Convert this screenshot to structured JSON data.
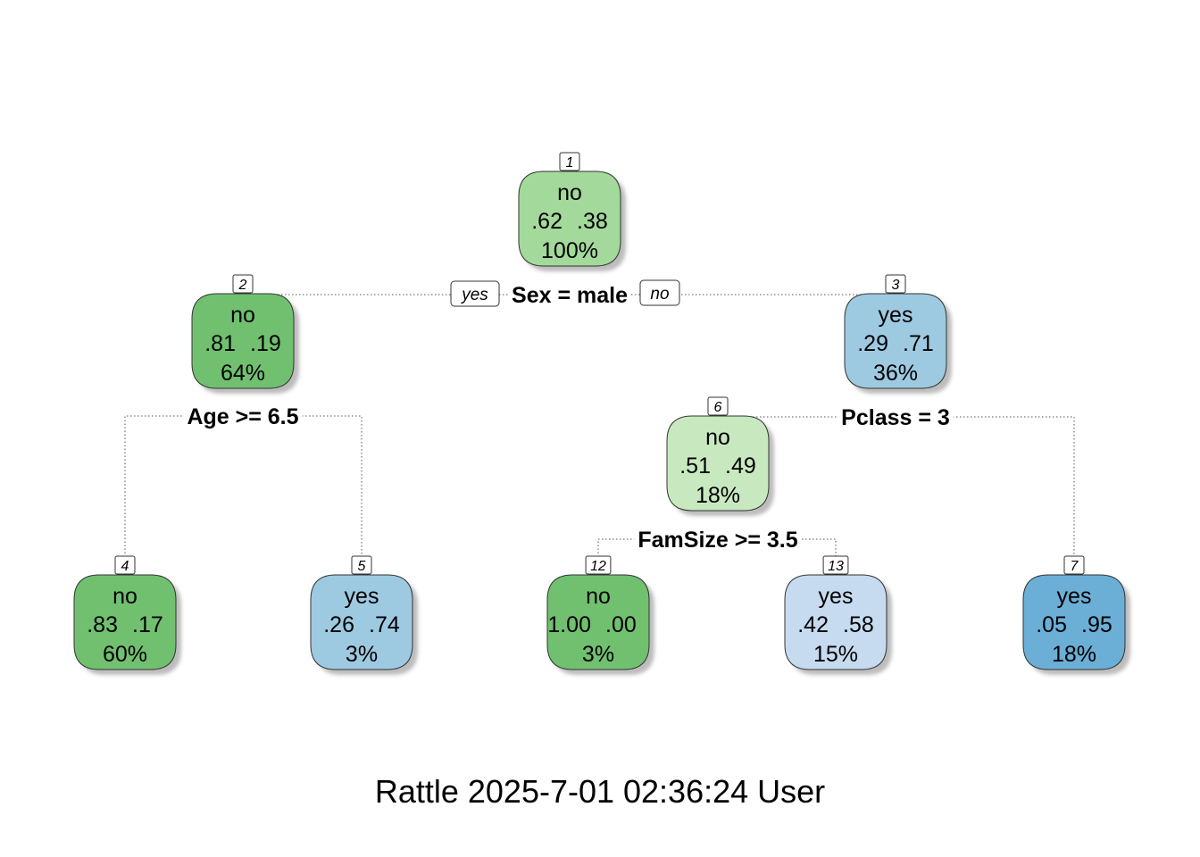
{
  "colors": {
    "green_dark": "#70c070",
    "green_mid": "#a3d99a",
    "green_light": "#c8e9c0",
    "blue_light": "#c6dbef",
    "blue_mid": "#9ecae1",
    "blue_dark": "#6baed6"
  },
  "nodes": [
    {
      "id": "1",
      "cls": "no",
      "p0": ".62",
      "p1": ".38",
      "pct": "100%",
      "fill": "green_mid"
    },
    {
      "id": "2",
      "cls": "no",
      "p0": ".81",
      "p1": ".19",
      "pct": "64%",
      "fill": "green_dark"
    },
    {
      "id": "3",
      "cls": "yes",
      "p0": ".29",
      "p1": ".71",
      "pct": "36%",
      "fill": "blue_mid"
    },
    {
      "id": "4",
      "cls": "no",
      "p0": ".83",
      "p1": ".17",
      "pct": "60%",
      "fill": "green_dark"
    },
    {
      "id": "5",
      "cls": "yes",
      "p0": ".26",
      "p1": ".74",
      "pct": "3%",
      "fill": "blue_mid"
    },
    {
      "id": "6",
      "cls": "no",
      "p0": ".51",
      "p1": ".49",
      "pct": "18%",
      "fill": "green_light"
    },
    {
      "id": "7",
      "cls": "yes",
      "p0": ".05",
      "p1": ".95",
      "pct": "18%",
      "fill": "blue_dark"
    },
    {
      "id": "12",
      "cls": "no",
      "p0": "1.00",
      "p1": ".00",
      "pct": "3%",
      "fill": "green_dark"
    },
    {
      "id": "13",
      "cls": "yes",
      "p0": ".42",
      "p1": ".58",
      "pct": "15%",
      "fill": "blue_light"
    }
  ],
  "splits": [
    {
      "node": "1",
      "label": "Sex = male"
    },
    {
      "node": "2",
      "label": "Age >= 6.5"
    },
    {
      "node": "3",
      "label": "Pclass = 3"
    },
    {
      "node": "6",
      "label": "FamSize >= 3.5"
    }
  ],
  "branch_tags": {
    "yes": "yes",
    "no": "no"
  },
  "footer": "Rattle 2025-7-01 02:36:24 User"
}
